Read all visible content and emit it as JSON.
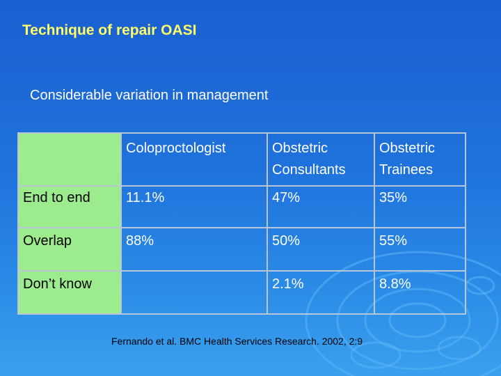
{
  "slide": {
    "title": "Technique of repair OASI",
    "subtitle": "Considerable variation in management",
    "citation": "Fernando et al. BMC Health Services Research. 2002, 2:9"
  },
  "table": {
    "headers": [
      "",
      "Coloproctologist",
      "Obstetric Consultants",
      "Obstetric Trainees"
    ],
    "header_lines": {
      "col1": [
        "Coloproctologist"
      ],
      "col2": [
        "Obstetric",
        "Consultants"
      ],
      "col3": [
        "Obstetric",
        "Trainees"
      ]
    },
    "rows": [
      {
        "label": "End to end",
        "values": [
          "11.1%",
          "47%",
          "35%"
        ]
      },
      {
        "label": "Overlap",
        "values": [
          "88%",
          "50%",
          "55%"
        ]
      },
      {
        "label": "Don’t know",
        "values": [
          "",
          "2.1%",
          "8.8%"
        ]
      }
    ]
  },
  "colors": {
    "background": "#1f72dc",
    "title": "#ffff66",
    "label_cells": "#9ceb8c",
    "text": "#ffffff"
  }
}
